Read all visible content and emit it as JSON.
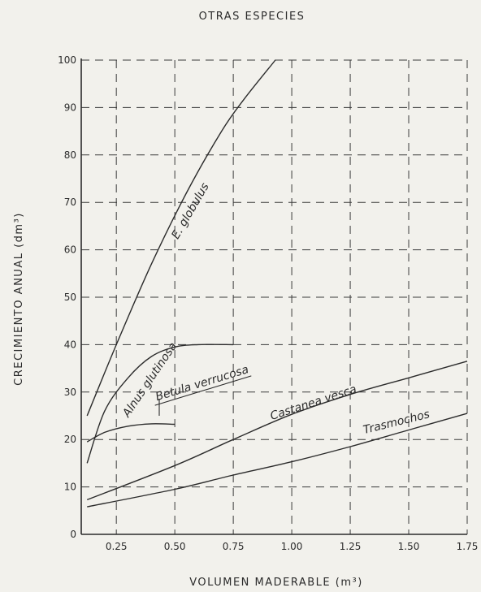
{
  "chart_data": {
    "type": "line",
    "title": "OTRAS ESPECIES",
    "xlabel": "VOLUMEN MADERABLE (m³)",
    "ylabel": "CRECIMIENTO ANUAL (dm³)",
    "xlim": [
      0.1,
      1.75
    ],
    "ylim": [
      0,
      100
    ],
    "xticks": [
      "0.25",
      "0.50",
      "0.75",
      "1.00",
      "1.25",
      "1.50",
      "1.75"
    ],
    "xtick_values": [
      0.25,
      0.5,
      0.75,
      1.0,
      1.25,
      1.5,
      1.75
    ],
    "yticks": [
      "0",
      "10",
      "20",
      "30",
      "40",
      "50",
      "60",
      "70",
      "80",
      "90",
      "100"
    ],
    "ytick_values": [
      0,
      10,
      20,
      30,
      40,
      50,
      60,
      70,
      80,
      90,
      100
    ],
    "grid": true,
    "series": [
      {
        "name": "E. globulus",
        "points": [
          [
            0.125,
            25
          ],
          [
            0.25,
            40
          ],
          [
            0.4,
            57
          ],
          [
            0.55,
            72
          ],
          [
            0.7,
            85
          ],
          [
            0.8,
            92
          ],
          [
            0.93,
            100
          ]
        ]
      },
      {
        "name": "Alnus glutinosa",
        "points": [
          [
            0.125,
            15
          ],
          [
            0.2,
            26
          ],
          [
            0.3,
            33
          ],
          [
            0.4,
            37.5
          ],
          [
            0.5,
            39.5
          ],
          [
            0.6,
            40
          ],
          [
            0.75,
            40
          ]
        ]
      },
      {
        "name": "Betula verrucosa",
        "points": [
          [
            0.125,
            19.5
          ],
          [
            0.2,
            21.5
          ],
          [
            0.3,
            22.8
          ],
          [
            0.4,
            23.3
          ],
          [
            0.5,
            23.2
          ]
        ]
      },
      {
        "name": "Castanea vesca",
        "points": [
          [
            0.125,
            7.3
          ],
          [
            0.5,
            14.5
          ],
          [
            0.75,
            20
          ],
          [
            1.0,
            25.3
          ],
          [
            1.25,
            29.5
          ],
          [
            1.5,
            33
          ],
          [
            1.75,
            36.5
          ]
        ]
      },
      {
        "name": "Trasmochos",
        "points": [
          [
            0.125,
            5.8
          ],
          [
            0.5,
            9.5
          ],
          [
            0.75,
            12.5
          ],
          [
            1.0,
            15.3
          ],
          [
            1.25,
            18.5
          ],
          [
            1.5,
            22
          ],
          [
            1.75,
            25.5
          ]
        ]
      }
    ]
  }
}
